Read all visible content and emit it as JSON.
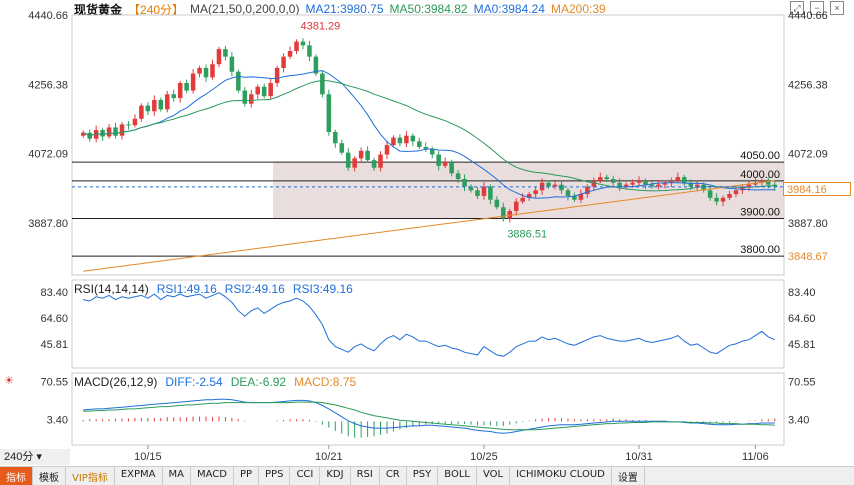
{
  "header": {
    "symbol": "现货黄金",
    "period": "【240分】",
    "ma_params": "MA(21,50,0,200,0,0)",
    "ma21": "MA21:3980.75",
    "ma50": "MA50:3984.82",
    "ma0": "MA0:3984.24",
    "ma200": "MA200:39"
  },
  "rsi_header": {
    "name": "RSI(14,14,14)",
    "rsi1": "RSI1:49.16",
    "rsi2": "RSI2:49.16",
    "rsi3": "RSI3:49.16"
  },
  "macd_header": {
    "name": "MACD(26,12,9)",
    "diff": "DIFF:-2.54",
    "dea": "DEA:-6.92",
    "macd": "MACD:8.75"
  },
  "period_selector": "240分",
  "current_price_tag": "3984.16",
  "tabs": [
    "指标",
    "模板",
    "VIP指标",
    "EXPMA",
    "MA",
    "MACD",
    "PP",
    "PPS",
    "CCI",
    "KDJ",
    "RSI",
    "CR",
    "PSY",
    "BOLL",
    "VOL",
    "ICHIMOKU CLOUD",
    "设置"
  ],
  "colors": {
    "up": "#e33b3b",
    "down": "#2e9e5e",
    "ma21": "#1f6fd9",
    "ma50": "#2a9a5a",
    "ma200": "#e58a2a",
    "zone": "#e3d5d5"
  },
  "chart_data": {
    "type": "candlestick",
    "x_ticks": [
      "10/15",
      "10/21",
      "10/25",
      "10/31",
      "11/06"
    ],
    "y_ticks_left": [
      "4440.66",
      "4256.38",
      "4072.09",
      "3887.80"
    ],
    "y_ticks_right": [
      "4440.66",
      "4256.38",
      "4072.09",
      "3887.80"
    ],
    "ylim": [
      3750,
      4440.66
    ],
    "levels": [
      {
        "value": 4050,
        "label": "4050.00"
      },
      {
        "value": 4000,
        "label": "4000.00"
      },
      {
        "value": 3900,
        "label": "3900.00"
      },
      {
        "value": 3800,
        "label": "3800.00"
      }
    ],
    "right_markers": [
      "3848.67"
    ],
    "annotations": [
      {
        "label": "4381.29",
        "value": 4381.29
      },
      {
        "label": "3886.51",
        "value": 3886.51
      }
    ],
    "closes": [
      4128,
      4112,
      4135,
      4118,
      4142,
      4120,
      4150,
      4148,
      4165,
      4200,
      4185,
      4215,
      4190,
      4230,
      4220,
      4260,
      4240,
      4285,
      4300,
      4275,
      4310,
      4350,
      4330,
      4290,
      4240,
      4205,
      4230,
      4250,
      4225,
      4260,
      4300,
      4330,
      4345,
      4370,
      4360,
      4330,
      4285,
      4230,
      4130,
      4100,
      4075,
      4035,
      4060,
      4080,
      4055,
      4035,
      4070,
      4095,
      4115,
      4100,
      4120,
      4105,
      4090,
      4085,
      4070,
      4040,
      4050,
      4020,
      4005,
      3985,
      3975,
      3960,
      3985,
      3950,
      3930,
      3900,
      3920,
      3945,
      3955,
      3965,
      3975,
      3995,
      3985,
      3990,
      3975,
      3960,
      3950,
      3965,
      3985,
      4000,
      4010,
      4005,
      3995,
      3985,
      3990,
      3995,
      4000,
      3990,
      3985,
      3990,
      3995,
      4000,
      4010,
      3995,
      3985,
      3990,
      3975,
      3955,
      3945,
      3955,
      3965,
      3975,
      3985,
      3990,
      3995,
      4000,
      3990,
      3985
    ],
    "rsi": {
      "ylim": [
        30,
        90
      ],
      "ticks": [
        "83.40",
        "64.60",
        "45.81"
      ],
      "values": [
        78,
        77,
        80,
        79,
        81,
        78,
        80,
        79,
        80,
        81,
        79,
        82,
        78,
        81,
        80,
        82,
        80,
        81,
        82,
        79,
        81,
        83,
        80,
        76,
        70,
        66,
        70,
        72,
        68,
        71,
        74,
        76,
        77,
        79,
        77,
        73,
        67,
        60,
        49,
        44,
        42,
        40,
        44,
        46,
        43,
        41,
        46,
        50,
        52,
        49,
        53,
        51,
        48,
        48,
        46,
        44,
        45,
        43,
        42,
        40,
        39,
        38,
        44,
        41,
        38,
        37,
        40,
        44,
        46,
        48,
        48,
        51,
        49,
        50,
        48,
        46,
        45,
        47,
        49,
        51,
        52,
        50,
        49,
        48,
        48,
        49,
        50,
        48,
        47,
        48,
        49,
        50,
        52,
        48,
        45,
        46,
        43,
        40,
        39,
        42,
        45,
        46,
        48,
        49,
        52,
        55,
        51,
        49
      ]
    },
    "macd": {
      "ylim": [
        -40,
        80
      ],
      "ticks": [
        "70.55",
        "3.40"
      ],
      "diff": [
        20,
        21,
        22,
        22,
        23,
        24,
        25,
        26,
        27,
        28,
        29,
        30,
        31,
        32,
        33,
        34,
        35,
        36,
        37,
        38,
        38,
        39,
        39,
        38,
        36,
        34,
        33,
        33,
        33,
        33,
        34,
        35,
        36,
        37,
        37,
        36,
        33,
        28,
        22,
        15,
        8,
        1,
        -4,
        -8,
        -10,
        -12,
        -12,
        -12,
        -11,
        -10,
        -9,
        -8,
        -8,
        -7,
        -7,
        -8,
        -9,
        -10,
        -11,
        -12,
        -14,
        -16,
        -17,
        -18,
        -20,
        -21,
        -20,
        -18,
        -16,
        -14,
        -12,
        -10,
        -8,
        -7,
        -6,
        -6,
        -6,
        -5,
        -4,
        -3,
        -2,
        -1,
        0,
        0,
        0,
        0,
        0,
        0,
        0,
        0,
        0,
        -1,
        -1,
        -2,
        -3,
        -3,
        -4,
        -5,
        -6,
        -6,
        -6,
        -5,
        -5,
        -4,
        -4,
        -3,
        -3,
        -3
      ],
      "dea": [
        18,
        18,
        19,
        19,
        20,
        20,
        21,
        22,
        22,
        23,
        24,
        25,
        26,
        26,
        27,
        28,
        29,
        29,
        30,
        31,
        32,
        32,
        33,
        33,
        33,
        33,
        33,
        33,
        33,
        33,
        33,
        33,
        33,
        34,
        34,
        34,
        34,
        33,
        31,
        29,
        26,
        23,
        20,
        16,
        13,
        10,
        8,
        6,
        4,
        2,
        1,
        0,
        -1,
        -2,
        -3,
        -4,
        -5,
        -6,
        -7,
        -8,
        -9,
        -10,
        -11,
        -12,
        -13,
        -14,
        -15,
        -15,
        -15,
        -15,
        -15,
        -14,
        -13,
        -12,
        -11,
        -10,
        -9,
        -8,
        -7,
        -6,
        -5,
        -4,
        -4,
        -3,
        -3,
        -2,
        -2,
        -2,
        -1,
        -1,
        -1,
        -1,
        -1,
        -1,
        -2,
        -2,
        -2,
        -3,
        -3,
        -4,
        -4,
        -4,
        -5,
        -5,
        -5,
        -6,
        -6,
        -7
      ]
    }
  }
}
